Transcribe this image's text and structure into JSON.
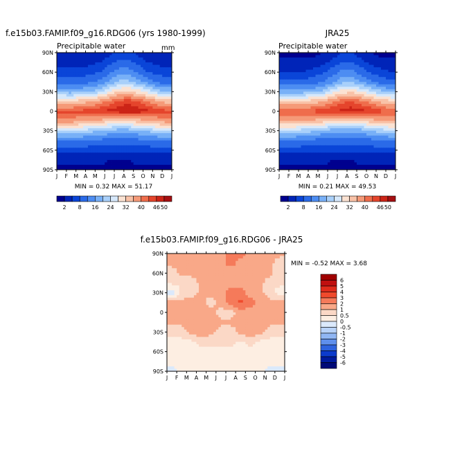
{
  "panels": [
    {
      "id": "model",
      "title": "f.e15b03.FAMIP.f09_g16.RDG06 (yrs 1980-1999)",
      "variable": "Precipitable water",
      "units": "mm",
      "stats_text": "MIN =    0.32  MAX =   51.17"
    },
    {
      "id": "obs",
      "title": "JRA25",
      "variable": "Precipitable water",
      "units": "",
      "stats_text": "MIN =    0.21  MAX =   49.53"
    },
    {
      "id": "diff",
      "title": "f.e15b03.FAMIP.f09_g16.RDG06 - JRA25",
      "variable": "",
      "units": "",
      "stats_text": "MIN =   -0.52  MAX =    3.68"
    }
  ],
  "chart_data": [
    {
      "type": "heatmap",
      "panel": "model",
      "title": "f.e15b03.FAMIP.f09_g16.RDG06 (yrs 1980-1999)",
      "subtitle": "Precipitable water",
      "units": "mm",
      "x_ticks": [
        "J",
        "F",
        "M",
        "A",
        "M",
        "J",
        "J",
        "A",
        "S",
        "O",
        "N",
        "D",
        "J"
      ],
      "y_ticks": [
        "90N",
        "60N",
        "30N",
        "0",
        "30S",
        "60S",
        "90S"
      ],
      "x_values": [
        1,
        2,
        3,
        4,
        5,
        6,
        7,
        8,
        9,
        10,
        11,
        12
      ],
      "y_values": [
        -90,
        -75,
        -60,
        -45,
        -30,
        -15,
        0,
        15,
        30,
        45,
        60,
        75,
        90
      ],
      "z_estimated": [
        [
          1,
          1,
          1,
          1,
          1,
          1,
          1,
          1,
          1,
          1,
          1,
          1
        ],
        [
          3,
          3,
          3,
          3,
          3,
          2,
          2,
          2,
          3,
          3,
          3,
          3
        ],
        [
          6,
          6,
          6,
          6,
          6,
          6,
          6,
          6,
          6,
          6,
          6,
          6
        ],
        [
          12,
          12,
          12,
          11,
          11,
          10,
          10,
          10,
          11,
          11,
          12,
          12
        ],
        [
          24,
          24,
          23,
          22,
          20,
          19,
          18,
          18,
          19,
          21,
          23,
          24
        ],
        [
          38,
          38,
          37,
          36,
          35,
          33,
          32,
          33,
          34,
          35,
          37,
          38
        ],
        [
          44,
          44,
          44,
          45,
          46,
          47,
          48,
          49,
          48,
          47,
          45,
          44
        ],
        [
          33,
          33,
          34,
          36,
          38,
          41,
          44,
          45,
          43,
          40,
          37,
          34
        ],
        [
          19,
          18,
          19,
          20,
          23,
          28,
          32,
          33,
          30,
          26,
          22,
          20
        ],
        [
          10,
          10,
          10,
          11,
          13,
          17,
          21,
          21,
          18,
          14,
          11,
          10
        ],
        [
          6,
          6,
          6,
          7,
          8,
          11,
          14,
          14,
          11,
          8,
          7,
          6
        ],
        [
          4,
          4,
          4,
          4,
          5,
          7,
          9,
          9,
          7,
          5,
          4,
          4
        ],
        [
          2,
          2,
          2,
          2,
          3,
          4,
          6,
          6,
          4,
          3,
          2,
          2
        ]
      ],
      "legend_levels": [
        "2",
        "8",
        "16",
        "24",
        "32",
        "40",
        "46",
        "50"
      ],
      "min": 0.32,
      "max": 51.17
    },
    {
      "type": "heatmap",
      "panel": "obs",
      "title": "JRA25",
      "subtitle": "Precipitable water",
      "x_ticks": [
        "J",
        "F",
        "M",
        "A",
        "M",
        "J",
        "J",
        "A",
        "S",
        "O",
        "N",
        "D",
        "J"
      ],
      "y_ticks": [
        "90N",
        "60N",
        "30N",
        "0",
        "30S",
        "60S",
        "90S"
      ],
      "x_values": [
        1,
        2,
        3,
        4,
        5,
        6,
        7,
        8,
        9,
        10,
        11,
        12
      ],
      "y_values": [
        -90,
        -75,
        -60,
        -45,
        -30,
        -15,
        0,
        15,
        30,
        45,
        60,
        75,
        90
      ],
      "z_estimated": [
        [
          1,
          1,
          1,
          1,
          1,
          1,
          1,
          1,
          1,
          1,
          1,
          1
        ],
        [
          3,
          3,
          3,
          3,
          3,
          2,
          2,
          2,
          3,
          3,
          3,
          3
        ],
        [
          6,
          6,
          6,
          6,
          6,
          6,
          6,
          6,
          6,
          6,
          6,
          6
        ],
        [
          12,
          12,
          11,
          11,
          10,
          10,
          10,
          10,
          10,
          11,
          12,
          12
        ],
        [
          23,
          23,
          22,
          21,
          19,
          18,
          17,
          17,
          18,
          20,
          22,
          23
        ],
        [
          37,
          37,
          36,
          35,
          34,
          32,
          31,
          32,
          33,
          34,
          36,
          37
        ],
        [
          43,
          43,
          43,
          44,
          45,
          46,
          47,
          48,
          47,
          46,
          44,
          43
        ],
        [
          32,
          32,
          33,
          34,
          36,
          39,
          42,
          43,
          41,
          38,
          35,
          33
        ],
        [
          18,
          17,
          18,
          19,
          21,
          26,
          30,
          31,
          28,
          24,
          21,
          19
        ],
        [
          9,
          9,
          9,
          10,
          12,
          15,
          19,
          19,
          16,
          13,
          10,
          9
        ],
        [
          5,
          5,
          5,
          6,
          7,
          10,
          13,
          13,
          10,
          7,
          6,
          5
        ],
        [
          3,
          3,
          3,
          3,
          4,
          6,
          8,
          8,
          6,
          4,
          3,
          3
        ],
        [
          1,
          1,
          1,
          1,
          2,
          3,
          5,
          5,
          3,
          2,
          1,
          1
        ]
      ],
      "legend_levels": [
        "2",
        "8",
        "16",
        "24",
        "32",
        "40",
        "46",
        "50"
      ],
      "min": 0.21,
      "max": 49.53
    },
    {
      "type": "heatmap",
      "panel": "diff",
      "title": "f.e15b03.FAMIP.f09_g16.RDG06 - JRA25",
      "x_ticks": [
        "J",
        "F",
        "M",
        "A",
        "M",
        "J",
        "J",
        "A",
        "S",
        "O",
        "N",
        "D",
        "J"
      ],
      "y_ticks": [
        "90N",
        "60N",
        "30N",
        "0",
        "30S",
        "60S",
        "90S"
      ],
      "x_values": [
        1,
        2,
        3,
        4,
        5,
        6,
        7,
        8,
        9,
        10,
        11,
        12
      ],
      "y_values": [
        -90,
        -75,
        -60,
        -45,
        -30,
        -15,
        0,
        15,
        30,
        45,
        60,
        75,
        90
      ],
      "z_estimated": [
        [
          -0.2,
          0.2,
          0.2,
          0.2,
          0.2,
          0.2,
          0.2,
          0.2,
          0.2,
          0.2,
          -0.3,
          -0.3
        ],
        [
          0.2,
          0.3,
          0.3,
          0.3,
          0.3,
          0.3,
          0.3,
          0.3,
          0.3,
          0.3,
          0.3,
          0.2
        ],
        [
          0.3,
          0.4,
          0.4,
          0.4,
          0.4,
          0.4,
          0.4,
          0.4,
          0.4,
          0.4,
          0.4,
          0.3
        ],
        [
          0.4,
          0.4,
          0.4,
          0.6,
          0.6,
          0.6,
          0.6,
          0.4,
          0.6,
          0.4,
          0.4,
          0.4
        ],
        [
          0.6,
          0.6,
          1.2,
          1.5,
          1.2,
          0.6,
          0.6,
          1.2,
          1.5,
          1.2,
          0.6,
          0.6
        ],
        [
          1.2,
          1.2,
          1.5,
          1.2,
          1.5,
          1.2,
          1.2,
          1.2,
          1.5,
          1.5,
          1.2,
          1.2
        ],
        [
          1.5,
          1.2,
          1.2,
          1.5,
          1.5,
          0.6,
          0.6,
          1.5,
          1.5,
          1.5,
          1.2,
          1.5
        ],
        [
          1.2,
          1.2,
          1.5,
          1.2,
          0.6,
          1.5,
          2.5,
          3.2,
          2.5,
          1.5,
          1.2,
          1.2
        ],
        [
          -0.3,
          0.6,
          0.6,
          1.2,
          1.2,
          1.5,
          2.5,
          2.5,
          1.5,
          1.2,
          0.6,
          0.3
        ],
        [
          0.6,
          0.6,
          0.6,
          1.2,
          1.2,
          1.5,
          1.5,
          1.5,
          1.2,
          1.2,
          0.6,
          0.6
        ],
        [
          0.6,
          1.2,
          1.2,
          1.2,
          1.5,
          1.5,
          1.2,
          1.5,
          1.5,
          1.2,
          1.2,
          0.6
        ],
        [
          1.2,
          1.2,
          1.2,
          1.5,
          1.5,
          1.5,
          2.5,
          1.5,
          1.2,
          1.2,
          1.2,
          0.6
        ],
        [
          1.2,
          1.2,
          1.5,
          1.5,
          1.5,
          1.5,
          2.5,
          2.5,
          1.5,
          1.5,
          1.2,
          1.2
        ]
      ],
      "legend_levels": [
        "6",
        "5",
        "4",
        "3",
        "2",
        "1",
        "0.5",
        "0",
        "-0.5",
        "-1",
        "-2",
        "-3",
        "-4",
        "-5",
        "-6"
      ],
      "min": -0.52,
      "max": 3.68
    }
  ],
  "colors": {
    "pw_scale": [
      "#00008f",
      "#0024b8",
      "#0a45d8",
      "#2a6ae8",
      "#4d8df2",
      "#78b0f7",
      "#a9d0fa",
      "#d6e8fb",
      "#fbe2d2",
      "#f9c2a7",
      "#f59a78",
      "#ef6d4c",
      "#e5452c",
      "#cc2417",
      "#a50f12"
    ],
    "diff_scale": [
      "#a00000",
      "#c01010",
      "#e02c1c",
      "#f04a2c",
      "#f57a5a",
      "#f9a888",
      "#fbd8c6",
      "#fdeee2",
      "#dbe9fb",
      "#b8d2f8",
      "#90b6f3",
      "#5f8fec",
      "#2e63de",
      "#0c3bcc",
      "#001b9e",
      "#000a78"
    ]
  }
}
